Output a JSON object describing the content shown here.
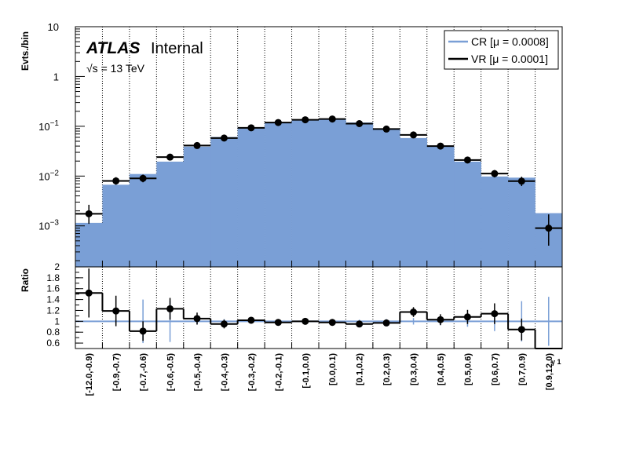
{
  "chart_data": {
    "type": "bar",
    "categories": [
      "[-12.0,-0.9)",
      "[-0.9,-0.7)",
      "[-0.7,-0.6)",
      "[-0.6,-0.5)",
      "[-0.5,-0.4)",
      "[-0.4,-0.3)",
      "[-0.3,-0.2)",
      "[-0.2,-0.1)",
      "[-0.1,0.0)",
      "[0.0,0.1)",
      "[0.1,0.2)",
      "[0.2,0.3)",
      "[0.3,0.4)",
      "[0.4,0.5)",
      "[0.5,0.6)",
      "[0.6,0.7)",
      "[0.7,0.9)",
      "[0.9,12.0)"
    ],
    "atlas_label": "ATLAS",
    "atlas_status": "Internal",
    "energy_label": "√s = 13 TeV",
    "ylabel": "Evts./bin",
    "ratio_ylabel": "Ratio",
    "xlabel": "γ 1",
    "yscale": "log",
    "ylim": [
      0.00015,
      10
    ],
    "yticks": [
      {
        "v": 0.001,
        "base": "10",
        "exp": "−3"
      },
      {
        "v": 0.01,
        "base": "10",
        "exp": "−2"
      },
      {
        "v": 0.1,
        "base": "10",
        "exp": "−1"
      },
      {
        "v": 1,
        "base": "1",
        "exp": ""
      },
      {
        "v": 10,
        "base": "10",
        "exp": ""
      }
    ],
    "ratio_ylim": [
      0.5,
      2.0
    ],
    "ratio_yticks": [
      "0.6",
      "0.8",
      "1",
      "1.2",
      "1.4",
      "1.6",
      "1.8",
      "2"
    ],
    "grid": "vertical dotted at bin edges",
    "legend_position": "top-right",
    "series": [
      {
        "name": "CR [μ = 0.0008]",
        "style": "filled-histogram",
        "color": "#7a9fd6",
        "values": [
          0.00115,
          0.0067,
          0.011,
          0.0195,
          0.039,
          0.061,
          0.091,
          0.121,
          0.135,
          0.143,
          0.119,
          0.091,
          0.058,
          0.039,
          0.0195,
          0.0098,
          0.0093,
          0.0018
        ]
      },
      {
        "name": "VR [μ = 0.0001]",
        "style": "points-with-errors",
        "color": "#000000",
        "values": [
          0.00175,
          0.008,
          0.009,
          0.024,
          0.041,
          0.058,
          0.093,
          0.119,
          0.135,
          0.14,
          0.113,
          0.088,
          0.067,
          0.04,
          0.021,
          0.0112,
          0.0079,
          0.0009
        ],
        "errors_low": [
          0.00065,
          0.0013,
          0.0015,
          0.0031,
          0.0041,
          0.0045,
          0.0055,
          0.0062,
          0.0068,
          0.007,
          0.0062,
          0.0055,
          0.0048,
          0.0038,
          0.0026,
          0.0018,
          0.0016,
          0.0005
        ],
        "errors_high": [
          0.0009,
          0.0015,
          0.0017,
          0.0034,
          0.0044,
          0.0048,
          0.0058,
          0.0065,
          0.0071,
          0.0073,
          0.0065,
          0.0058,
          0.0051,
          0.0041,
          0.0028,
          0.002,
          0.0018,
          0.0008
        ]
      }
    ],
    "ratio": {
      "values": [
        1.52,
        1.19,
        0.82,
        1.23,
        1.05,
        0.95,
        1.02,
        0.98,
        1.0,
        0.98,
        0.95,
        0.97,
        1.17,
        1.03,
        1.08,
        1.14,
        0.85,
        0.5
      ],
      "errors": [
        0.45,
        0.28,
        0.18,
        0.2,
        0.11,
        0.08,
        0.06,
        0.05,
        0.05,
        0.05,
        0.05,
        0.06,
        0.09,
        0.1,
        0.13,
        0.19,
        0.2,
        0.5
      ],
      "reference_errors": [
        0.0,
        0.03,
        0.4,
        0.38,
        0.06,
        0.04,
        0.04,
        0.03,
        0.03,
        0.03,
        0.03,
        0.04,
        0.06,
        0.07,
        0.1,
        0.18,
        0.37,
        0.45
      ]
    }
  }
}
